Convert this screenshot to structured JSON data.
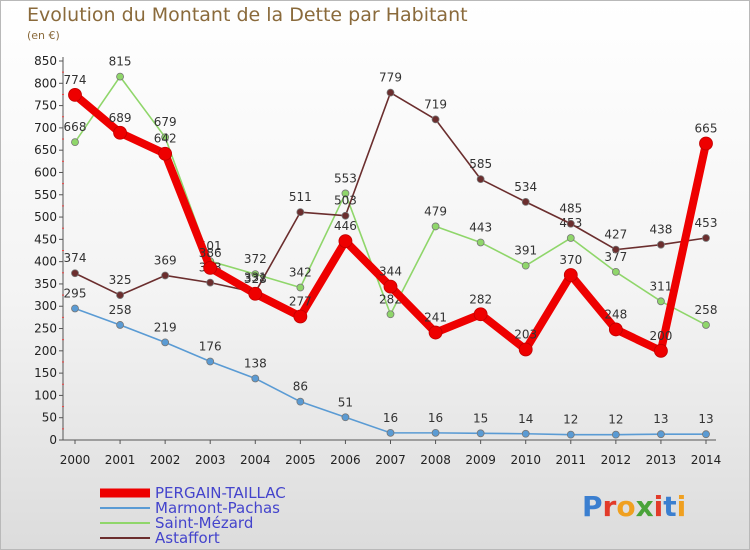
{
  "header": {
    "title": "Evolution du Montant de la Dette par Habitant",
    "subtitle": "(en €)"
  },
  "logo": {
    "text": "Proxiti",
    "colors": [
      "#3b7fd0",
      "#e23b2a",
      "#f0a020",
      "#4aa33a",
      "#e23b2a",
      "#3b7fd0",
      "#f0a020"
    ]
  },
  "chart_data": {
    "type": "line",
    "title": "Evolution du Montant de la Dette par Habitant",
    "subtitle": "(en €)",
    "x": [
      2000,
      2001,
      2002,
      2003,
      2004,
      2005,
      2006,
      2007,
      2008,
      2009,
      2010,
      2011,
      2012,
      2013,
      2014
    ],
    "ylim": [
      0,
      850
    ],
    "yticks": [
      0,
      50,
      100,
      150,
      200,
      250,
      300,
      350,
      400,
      450,
      500,
      550,
      600,
      650,
      700,
      750,
      800,
      850
    ],
    "grid": false,
    "legend_position": "bottom-left",
    "series": [
      {
        "name": "PERGAIN-TAILLAC",
        "color": "#ee0000",
        "thick": true,
        "values": [
          774,
          689,
          642,
          386,
          328,
          277,
          446,
          344,
          241,
          282,
          203,
          370,
          248,
          200,
          665
        ]
      },
      {
        "name": "Marmont-Pachas",
        "color": "#5a9bd4",
        "thick": false,
        "values": [
          295,
          258,
          219,
          176,
          138,
          86,
          51,
          16,
          16,
          15,
          14,
          12,
          12,
          13,
          13
        ]
      },
      {
        "name": "Saint-Mézard",
        "color": "#8fd66a",
        "thick": false,
        "values": [
          668,
          815,
          679,
          401,
          372,
          342,
          553,
          282,
          479,
          443,
          391,
          453,
          377,
          311,
          258
        ]
      },
      {
        "name": "Astaffort",
        "color": "#6b2e2e",
        "thick": false,
        "values": [
          374,
          325,
          369,
          353,
          331,
          511,
          503,
          779,
          719,
          585,
          534,
          485,
          427,
          438,
          453
        ]
      }
    ]
  }
}
